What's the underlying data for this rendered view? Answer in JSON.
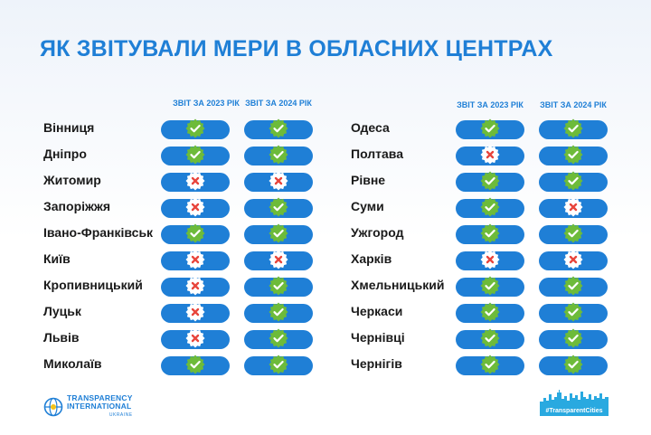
{
  "title": "ЯК ЗВІТУВАЛИ МЕРИ В ОБЛАСНИХ ЦЕНТРАХ",
  "headers": {
    "report_2023": "ЗВІТ ЗА 2023 РІК",
    "report_2024": "ЗВІТ ЗА 2024 РІК"
  },
  "colors": {
    "accent": "#1f7fd6",
    "check": "#6dbb3a",
    "cross_fill": "#ffffff",
    "cross": "#e8453c"
  },
  "left_cities": [
    {
      "name": "Вінниця",
      "r2023": true,
      "r2024": true
    },
    {
      "name": "Дніпро",
      "r2023": true,
      "r2024": true
    },
    {
      "name": "Житомир",
      "r2023": false,
      "r2024": false
    },
    {
      "name": "Запоріжжя",
      "r2023": false,
      "r2024": true
    },
    {
      "name": "Івано-Франківськ",
      "r2023": true,
      "r2024": true
    },
    {
      "name": "Київ",
      "r2023": false,
      "r2024": false
    },
    {
      "name": "Кропивницький",
      "r2023": false,
      "r2024": true
    },
    {
      "name": "Луцьк",
      "r2023": false,
      "r2024": true
    },
    {
      "name": "Львів",
      "r2023": false,
      "r2024": true
    },
    {
      "name": "Миколаїв",
      "r2023": true,
      "r2024": true
    }
  ],
  "right_cities": [
    {
      "name": "Одеса",
      "r2023": true,
      "r2024": true
    },
    {
      "name": "Полтава",
      "r2023": false,
      "r2024": true
    },
    {
      "name": "Рівне",
      "r2023": true,
      "r2024": true
    },
    {
      "name": "Суми",
      "r2023": true,
      "r2024": false
    },
    {
      "name": "Ужгород",
      "r2023": true,
      "r2024": true
    },
    {
      "name": "Харків",
      "r2023": false,
      "r2024": false
    },
    {
      "name": "Хмельницький",
      "r2023": true,
      "r2024": true
    },
    {
      "name": "Черкаси",
      "r2023": true,
      "r2024": true
    },
    {
      "name": "Чернівці",
      "r2023": true,
      "r2024": true
    },
    {
      "name": "Чернігів",
      "r2023": true,
      "r2024": true
    }
  ],
  "footer": {
    "logo_line1": "TRANSPARENCY",
    "logo_line2": "INTERNATIONAL",
    "logo_line3": "UKRAINE",
    "logo_icon": "globe-icon",
    "hashtag": "#TransparentCities",
    "skyline_icon": "city-skyline-icon"
  }
}
